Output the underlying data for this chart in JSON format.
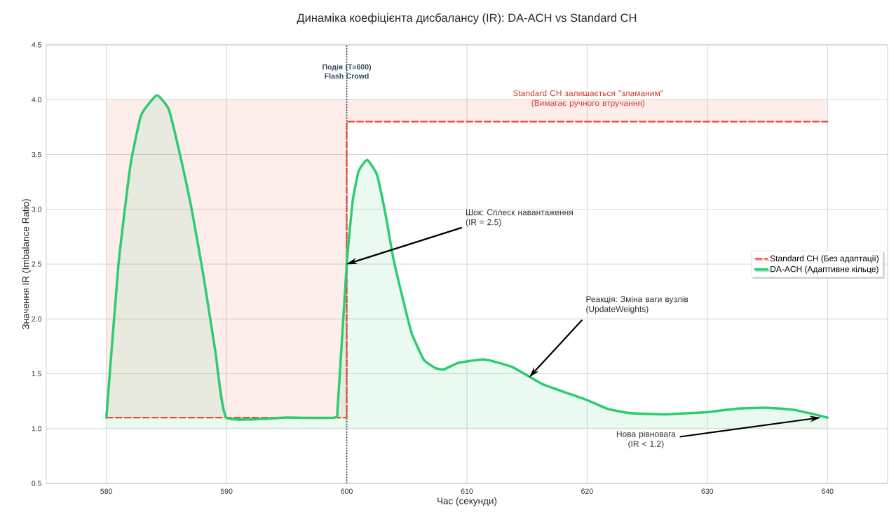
{
  "chart_data": {
    "type": "line",
    "title": "Динаміка коефіцієнта дисбалансу (IR): DA-ACH vs Standard CH",
    "xlabel": "Час (секунди)",
    "ylabel": "Значення IR (Imbalance Ratio)",
    "xlim": [
      575,
      645
    ],
    "ylim": [
      0.5,
      4.5
    ],
    "xticks": [
      580,
      590,
      600,
      610,
      620,
      630,
      640
    ],
    "yticks": [
      {
        "value": 0.5,
        "label": "0.5"
      },
      {
        "value": 1,
        "label": "1.0"
      },
      {
        "value": 1.5,
        "label": "1.5"
      },
      {
        "value": 2,
        "label": "2.0"
      },
      {
        "value": 2.5,
        "label": "2.5"
      },
      {
        "value": 3,
        "label": "3.0"
      },
      {
        "value": 3.5,
        "label": "3.5"
      },
      {
        "value": 4,
        "label": "4.0"
      },
      {
        "value": 4.5,
        "label": "4.5"
      }
    ],
    "grid": true,
    "legend": "right",
    "series": [
      {
        "name": "Standard CH (Без адаптації)",
        "color": "#e74c3c",
        "line_style": "dashed",
        "x": [
          580,
          600,
          600,
          640
        ],
        "values": [
          1.1,
          1.1,
          3.8,
          3.8
        ],
        "lower": [
          1.1,
          1.1,
          3.8,
          3.8
        ],
        "upper": [
          4.0,
          4.0,
          4.0,
          4.0
        ]
      },
      {
        "name": "DA-ACH (Адаптивне кільце)",
        "color": "#2ecc71",
        "line_style": "solid",
        "x": [
          580,
          581,
          582,
          582.9,
          584.2,
          585.2,
          586.1,
          587.1,
          588.1,
          589.1,
          590,
          595,
          599,
          599.25,
          600,
          600.5,
          601,
          601.7,
          602.5,
          603.2,
          603.9,
          604.7,
          605.4,
          606.4,
          607.4,
          608.1,
          609.3,
          611.5,
          613.8,
          616.2,
          618.7,
          620,
          621.7,
          623.6,
          626.5,
          630,
          632.4,
          634.9,
          637.2,
          638.9,
          640
        ],
        "values": [
          1.1,
          2.49,
          3.4,
          3.86,
          4.04,
          3.91,
          3.51,
          3.0,
          2.38,
          1.68,
          1.1,
          1.1,
          1.1,
          1.2,
          2.5,
          3.08,
          3.35,
          3.45,
          3.32,
          2.97,
          2.54,
          2.17,
          1.87,
          1.63,
          1.55,
          1.54,
          1.6,
          1.63,
          1.56,
          1.41,
          1.31,
          1.26,
          1.18,
          1.14,
          1.13,
          1.15,
          1.18,
          1.19,
          1.17,
          1.13,
          1.1
        ],
        "upper": [
          1.1,
          2.49,
          3.4,
          3.86,
          4.04,
          3.91,
          3.51,
          3.0,
          2.38,
          1.68,
          1.1,
          1.1,
          1.1,
          1.2,
          2.5,
          3.08,
          3.35,
          3.45,
          3.32,
          2.97,
          2.54,
          2.17,
          1.87,
          1.63,
          1.55,
          1.54,
          1.6,
          1.63,
          1.56,
          1.41,
          1.31,
          1.26,
          1.18,
          1.14,
          1.13,
          1.15,
          1.18,
          1.19,
          1.17,
          1.13,
          1.1
        ],
        "lower": [
          1.0,
          1.0,
          1.0,
          1.0,
          1.0,
          1.0,
          1.0,
          1.0,
          1.0,
          1.0,
          1.0,
          1.0,
          1.0,
          1.0,
          1.0,
          1.0,
          1.0,
          1.0,
          1.0,
          1.0,
          1.0,
          1.0,
          1.0,
          1.0,
          1.0,
          1.0,
          1.0,
          1.0,
          1.0,
          1.0,
          1.0,
          1.0,
          1.0,
          1.0,
          1.0,
          1.0,
          1.0,
          1.0,
          1.0,
          1.0,
          1.0
        ]
      }
    ],
    "ref_lines": [
      {
        "axis": "x",
        "value": 600,
        "label": "Подія (T=600) Flash Crowd",
        "color": "#34495e",
        "line_style": "dotted"
      }
    ],
    "annotations": [
      "Standard CH залишається \"зламаним\" (Вимагає ручного втручання)",
      {
        "text": "Шок: Сплеск навантаження (IR ≈ 2.5)",
        "x": 600,
        "y": 2.5
      },
      {
        "text": "Реакція: Зміна ваги вузлів (UpdateWeights)",
        "x": 615.2,
        "y": 1.47
      },
      {
        "text": "Нова рівновага (IR < 1.2)",
        "x": 639.4,
        "y": 1.1
      }
    ]
  }
}
